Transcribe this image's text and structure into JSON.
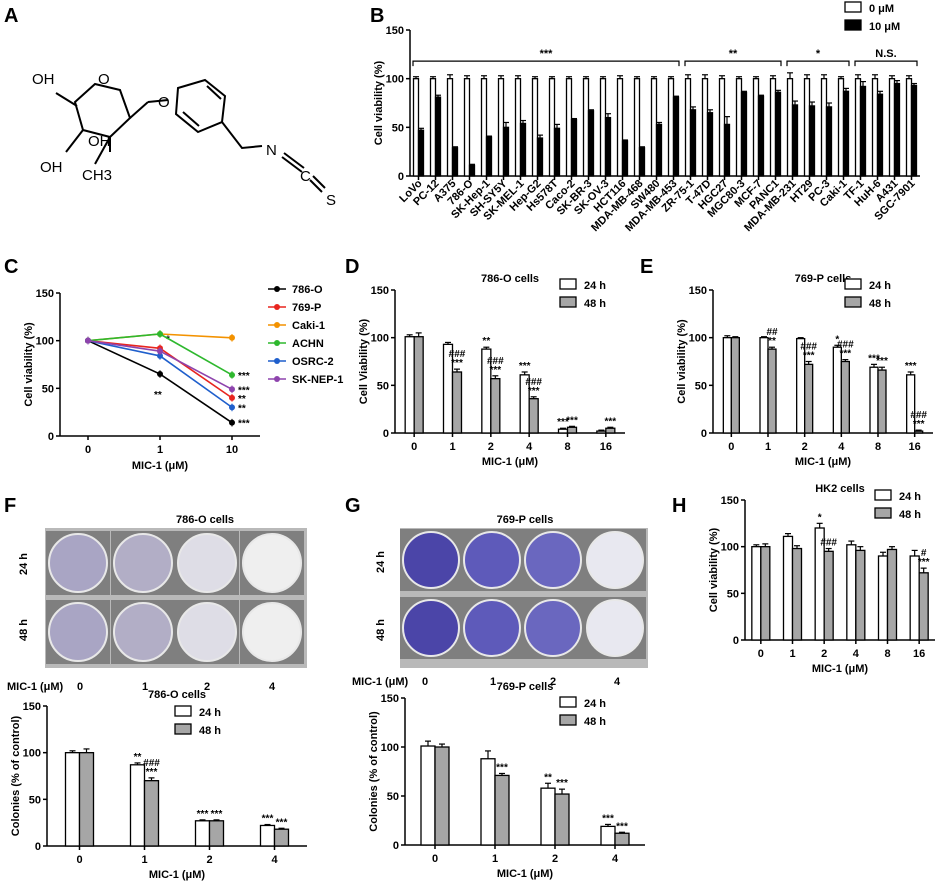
{
  "panel_letters": [
    "A",
    "B",
    "C",
    "D",
    "E",
    "F",
    "G",
    "H"
  ],
  "structure": {
    "atoms": [
      "OH",
      "O",
      "O",
      "OH",
      "CH3",
      "OH",
      "N",
      "C",
      "S"
    ]
  },
  "colors": {
    "white_bar": "#ffffff",
    "black_bar": "#000000",
    "gray_bar": "#a6a6a6"
  },
  "panel_b": {
    "ylabel": "Cell viability (%)",
    "legend": [
      "0 μM",
      "10 μM"
    ],
    "group_labels": [
      "***",
      "**",
      "*",
      "N.S."
    ],
    "yticks": [
      "0",
      "50",
      "100",
      "150"
    ]
  },
  "panel_f": {
    "image_title": "786-O cells",
    "row_labels": [
      "24 h",
      "48 h"
    ],
    "dose_label": "MIC-1 (μM)",
    "doses": [
      "0",
      "1",
      "2",
      "4"
    ]
  },
  "panel_g": {
    "image_title": "769-P cells",
    "row_labels": [
      "24 h",
      "48 h"
    ],
    "dose_label": "MIC-1 (μM)",
    "doses": [
      "0",
      "1",
      "2",
      "4"
    ]
  },
  "chart_data": [
    {
      "panel": "B",
      "type": "bar",
      "ylabel": "Cell viability (%)",
      "ylim": [
        0,
        150
      ],
      "yticks": [
        0,
        50,
        100,
        150
      ],
      "categories": [
        "LoVo",
        "PC-12",
        "A375",
        "786-O",
        "SK-Hep-1",
        "SH-SY5Y",
        "SK-MEL-1",
        "Hep-G2",
        "Hs578T",
        "Caco-2",
        "SK-BR-3",
        "SK-OV-3",
        "HCT116",
        "MDA-MB-468",
        "SW480",
        "MDA-MB-453",
        "ZR-75-1",
        "T-47D",
        "HGC27",
        "MGC80-3",
        "MCF-7",
        "PANC1",
        "MDA-MB-231",
        "HT29",
        "PC-3",
        "Caki-1",
        "TF-1",
        "HuH-6",
        "A431",
        "SGC-7901"
      ],
      "series": [
        {
          "name": "0 μM",
          "values": [
            100,
            100,
            100,
            100,
            100,
            100,
            100,
            100,
            100,
            100,
            100,
            100,
            100,
            100,
            100,
            100,
            100,
            100,
            100,
            100,
            100,
            100,
            100,
            100,
            100,
            100,
            100,
            100,
            100,
            100
          ],
          "errors": [
            2,
            2,
            4,
            3,
            3,
            3,
            3,
            2,
            2,
            2,
            2,
            2,
            3,
            2,
            2,
            2,
            4,
            4,
            3,
            2,
            2,
            3,
            6,
            4,
            4,
            2,
            4,
            4,
            3,
            3
          ]
        },
        {
          "name": "10 μM",
          "values": [
            47,
            81,
            29,
            11,
            40,
            50,
            54,
            39,
            49,
            58,
            67,
            60,
            36,
            29,
            53,
            81,
            68,
            65,
            53,
            86,
            82,
            86,
            73,
            72,
            71,
            87,
            92,
            84,
            95,
            93
          ],
          "errors": [
            2,
            2,
            1,
            1,
            1,
            5,
            3,
            3,
            4,
            1,
            1,
            4,
            1,
            1,
            2,
            1,
            3,
            3,
            8,
            1,
            1,
            2,
            4,
            4,
            4,
            3,
            5,
            3,
            3,
            2
          ]
        }
      ],
      "group_brackets": [
        "***",
        "**",
        "*",
        "N.S."
      ]
    },
    {
      "panel": "C",
      "type": "line",
      "xlabel": "MIC-1 (μM)",
      "ylabel": "Cell viability (%)",
      "ylim": [
        0,
        150
      ],
      "yticks": [
        0,
        50,
        100,
        150
      ],
      "x": [
        "0",
        "1",
        "10"
      ],
      "series": [
        {
          "name": "786-O",
          "color": "#000000",
          "values": [
            100,
            65,
            14
          ],
          "annotations": [
            "",
            "**",
            "***"
          ]
        },
        {
          "name": "769-P",
          "color": "#e8251f",
          "values": [
            100,
            92,
            40
          ],
          "annotations": [
            "",
            "*",
            "**"
          ]
        },
        {
          "name": "Caki-1",
          "color": "#f39200",
          "values": [
            100,
            107,
            103
          ],
          "annotations": [
            "",
            "",
            ""
          ]
        },
        {
          "name": "ACHN",
          "color": "#2eb82e",
          "values": [
            100,
            107,
            64
          ],
          "annotations": [
            "",
            "",
            "***"
          ]
        },
        {
          "name": "OSRC-2",
          "color": "#1f5fcc",
          "values": [
            100,
            84,
            30
          ],
          "annotations": [
            "",
            "",
            "**"
          ]
        },
        {
          "name": "SK-NEP-1",
          "color": "#8e44ad",
          "values": [
            100,
            89,
            49
          ],
          "annotations": [
            "",
            "",
            "***"
          ]
        }
      ]
    },
    {
      "panel": "D",
      "type": "bar",
      "title": "786-O cells",
      "xlabel": "MIC-1 (μM)",
      "ylabel": "Cell Viability (%)",
      "ylim": [
        0,
        150
      ],
      "yticks": [
        0,
        50,
        100,
        150
      ],
      "categories": [
        "0",
        "1",
        "2",
        "4",
        "8",
        "16"
      ],
      "series": [
        {
          "name": "24 h",
          "values": [
            101,
            93,
            88,
            61,
            4,
            2
          ],
          "errors": [
            2,
            2,
            2,
            3,
            1,
            1
          ],
          "annotations": [
            "",
            "",
            "**",
            "***",
            "***",
            ""
          ]
        },
        {
          "name": "48 h",
          "values": [
            101,
            64,
            57,
            36,
            6,
            5
          ],
          "errors": [
            4,
            3,
            3,
            2,
            1,
            1
          ],
          "annotations": [
            "",
            "###|***",
            "###|***",
            "###|***",
            "***",
            "***"
          ]
        }
      ],
      "extra_annotation": "***"
    },
    {
      "panel": "E",
      "type": "bar",
      "title": "769-P cells",
      "xlabel": "MIC-1 (μM)",
      "ylabel": "Cell viability (%)",
      "ylim": [
        0,
        150
      ],
      "yticks": [
        0,
        50,
        100,
        150
      ],
      "categories": [
        "0",
        "1",
        "2",
        "4",
        "8",
        "16"
      ],
      "series": [
        {
          "name": "24 h",
          "values": [
            100,
            100,
            99,
            90,
            69,
            61
          ],
          "errors": [
            2,
            1,
            1,
            2,
            3,
            3
          ],
          "annotations": [
            "",
            "",
            "",
            "*",
            "***",
            "***"
          ]
        },
        {
          "name": "48 h",
          "values": [
            100,
            88,
            72,
            75,
            66,
            2
          ],
          "errors": [
            1,
            2,
            3,
            2,
            3,
            1
          ],
          "annotations": [
            "",
            "##|**",
            "###|***",
            "###|***",
            "***",
            "###|***"
          ]
        }
      ]
    },
    {
      "panel": "F",
      "type": "bar",
      "title": "786-O cells",
      "xlabel": "MIC-1 (μM)",
      "ylabel": "Colonies (% of control)",
      "ylim": [
        0,
        150
      ],
      "yticks": [
        0,
        50,
        100,
        150
      ],
      "categories": [
        "0",
        "1",
        "2",
        "4"
      ],
      "series": [
        {
          "name": "24 h",
          "values": [
            100,
            87,
            27,
            22
          ],
          "errors": [
            2,
            2,
            1,
            1
          ],
          "annotations": [
            "",
            "**",
            "***",
            "***"
          ]
        },
        {
          "name": "48 h",
          "values": [
            100,
            70,
            27,
            18
          ],
          "errors": [
            4,
            3,
            1,
            1
          ],
          "annotations": [
            "",
            "###|***",
            "***",
            "***"
          ]
        }
      ]
    },
    {
      "panel": "G",
      "type": "bar",
      "title": "769-P cells",
      "xlabel": "MIC-1 (μM)",
      "ylabel": "Colonies (% of control)",
      "ylim": [
        0,
        150
      ],
      "yticks": [
        0,
        50,
        100,
        150
      ],
      "categories": [
        "0",
        "1",
        "2",
        "4"
      ],
      "series": [
        {
          "name": "24 h",
          "values": [
            101,
            88,
            58,
            19
          ],
          "errors": [
            5,
            8,
            5,
            2
          ],
          "annotations": [
            "",
            "",
            "**",
            "***"
          ]
        },
        {
          "name": "48 h",
          "values": [
            100,
            71,
            52,
            12
          ],
          "errors": [
            3,
            2,
            5,
            1
          ],
          "annotations": [
            "",
            "***",
            "***",
            "***"
          ]
        }
      ]
    },
    {
      "panel": "H",
      "type": "bar",
      "title": "HK2 cells",
      "xlabel": "MIC-1 (μM)",
      "ylabel": "Cell viability (%)",
      "ylim": [
        0,
        150
      ],
      "yticks": [
        0,
        50,
        100,
        150
      ],
      "categories": [
        "0",
        "1",
        "2",
        "4",
        "8",
        "16"
      ],
      "series": [
        {
          "name": "24 h",
          "values": [
            100,
            111,
            120,
            102,
            90,
            90
          ],
          "errors": [
            2,
            3,
            5,
            4,
            4,
            6
          ],
          "annotations": [
            "",
            "",
            "*",
            "",
            "",
            ""
          ]
        },
        {
          "name": "48 h",
          "values": [
            100,
            98,
            95,
            96,
            97,
            72
          ],
          "errors": [
            3,
            3,
            3,
            4,
            3,
            5
          ],
          "annotations": [
            "",
            "",
            "###",
            "",
            "",
            "#|***"
          ]
        }
      ]
    }
  ]
}
